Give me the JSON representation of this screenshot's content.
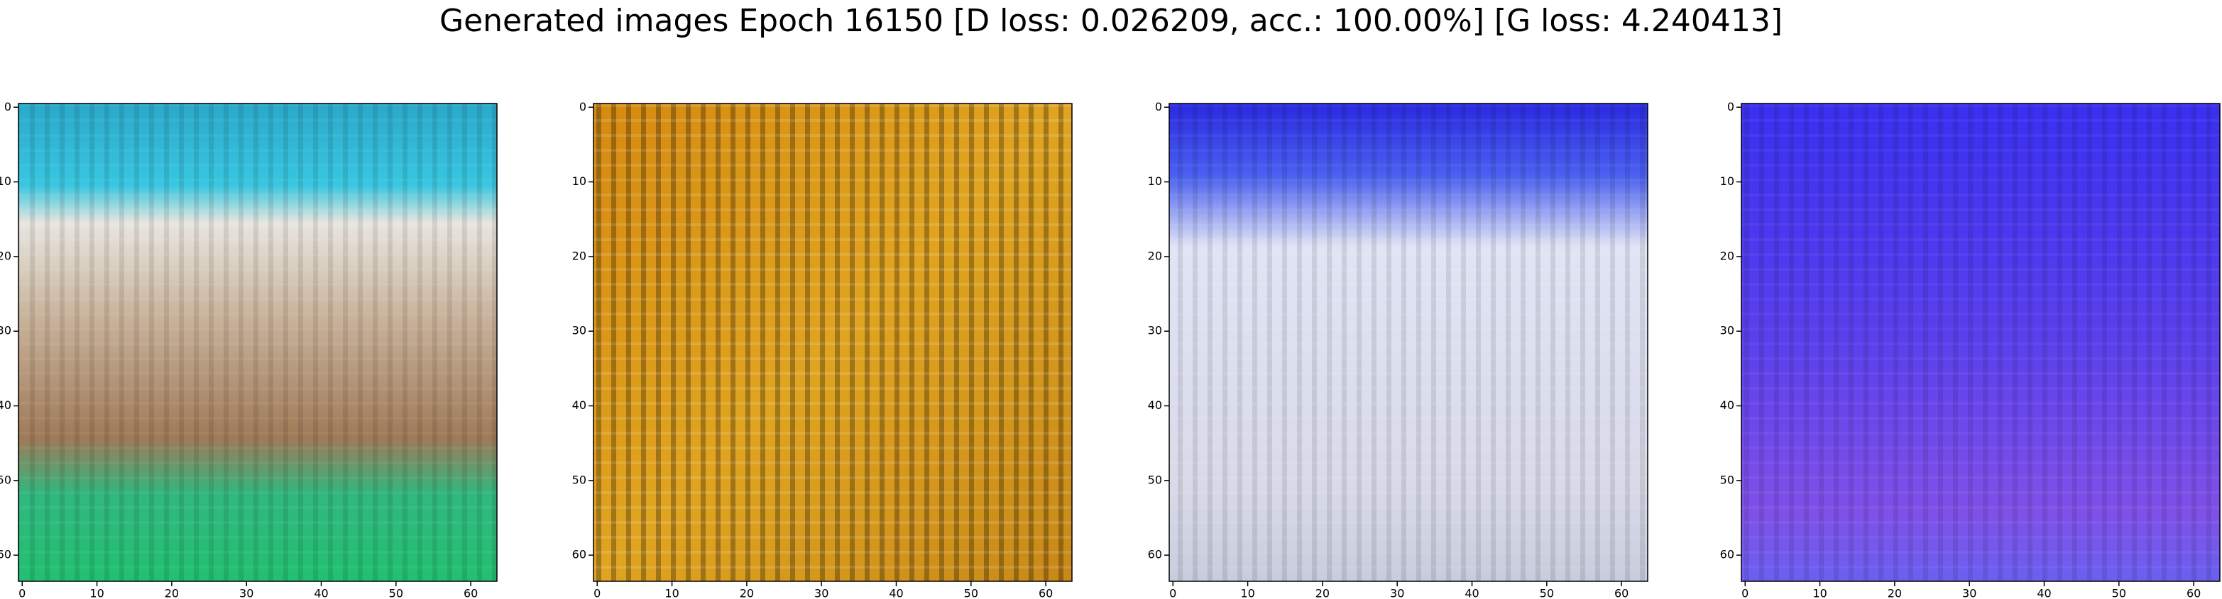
{
  "title": "Generated images Epoch 16150 [D loss: 0.026209, acc.: 100.00%] [G loss: 4.240413]",
  "chart_data": [
    {
      "type": "image",
      "xlim": [
        -0.5,
        63.5
      ],
      "ylim": [
        63.5,
        -0.5
      ],
      "xticks": [
        0,
        10,
        20,
        30,
        40,
        50,
        60
      ],
      "yticks": [
        0,
        10,
        20,
        30,
        40,
        50,
        60
      ]
    },
    {
      "type": "image",
      "xlim": [
        -0.5,
        63.5
      ],
      "ylim": [
        63.5,
        -0.5
      ],
      "xticks": [
        0,
        10,
        20,
        30,
        40,
        50,
        60
      ],
      "yticks": [
        0,
        10,
        20,
        30,
        40,
        50,
        60
      ]
    },
    {
      "type": "image",
      "xlim": [
        -0.5,
        63.5
      ],
      "ylim": [
        63.5,
        -0.5
      ],
      "xticks": [
        0,
        10,
        20,
        30,
        40,
        50,
        60
      ],
      "yticks": [
        0,
        10,
        20,
        30,
        40,
        50,
        60
      ]
    },
    {
      "type": "image",
      "xlim": [
        -0.5,
        63.5
      ],
      "ylim": [
        63.5,
        -0.5
      ],
      "xticks": [
        0,
        10,
        20,
        30,
        40,
        50,
        60
      ],
      "yticks": [
        0,
        10,
        20,
        30,
        40,
        50,
        60
      ]
    }
  ]
}
